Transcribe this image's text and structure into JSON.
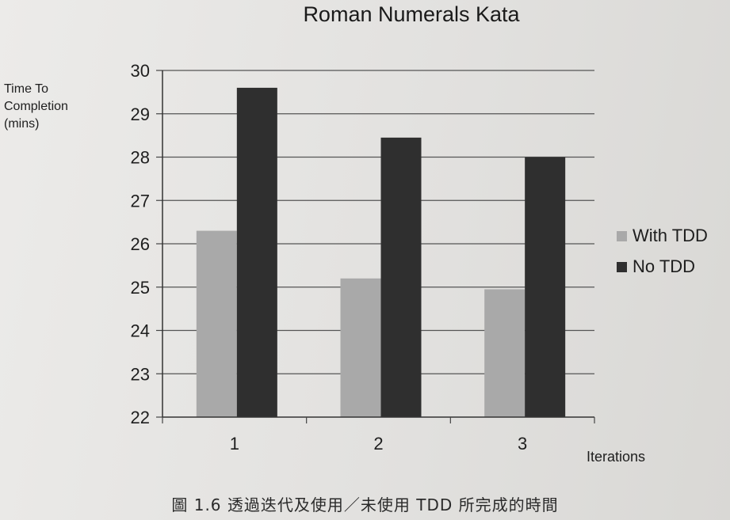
{
  "chart_data": {
    "type": "bar",
    "title": "Roman Numerals Kata",
    "ylabel_lines": [
      "Time To",
      "Completion",
      "(mins)"
    ],
    "xlabel": "Iterations",
    "categories": [
      "1",
      "2",
      "3"
    ],
    "series": [
      {
        "name": "With TDD",
        "values": [
          26.3,
          25.2,
          24.95
        ],
        "color": "#a9a9a9"
      },
      {
        "name": "No TDD",
        "values": [
          29.6,
          28.45,
          28.0
        ],
        "color": "#2f2f2f"
      }
    ],
    "ylim": [
      22,
      30
    ],
    "yticks": [
      30,
      29,
      28,
      27,
      26,
      25,
      24,
      23,
      22
    ],
    "grid": true,
    "legend_position": "right"
  },
  "caption": "圖 1.6 透過迭代及使用／未使用 TDD 所完成的時間"
}
